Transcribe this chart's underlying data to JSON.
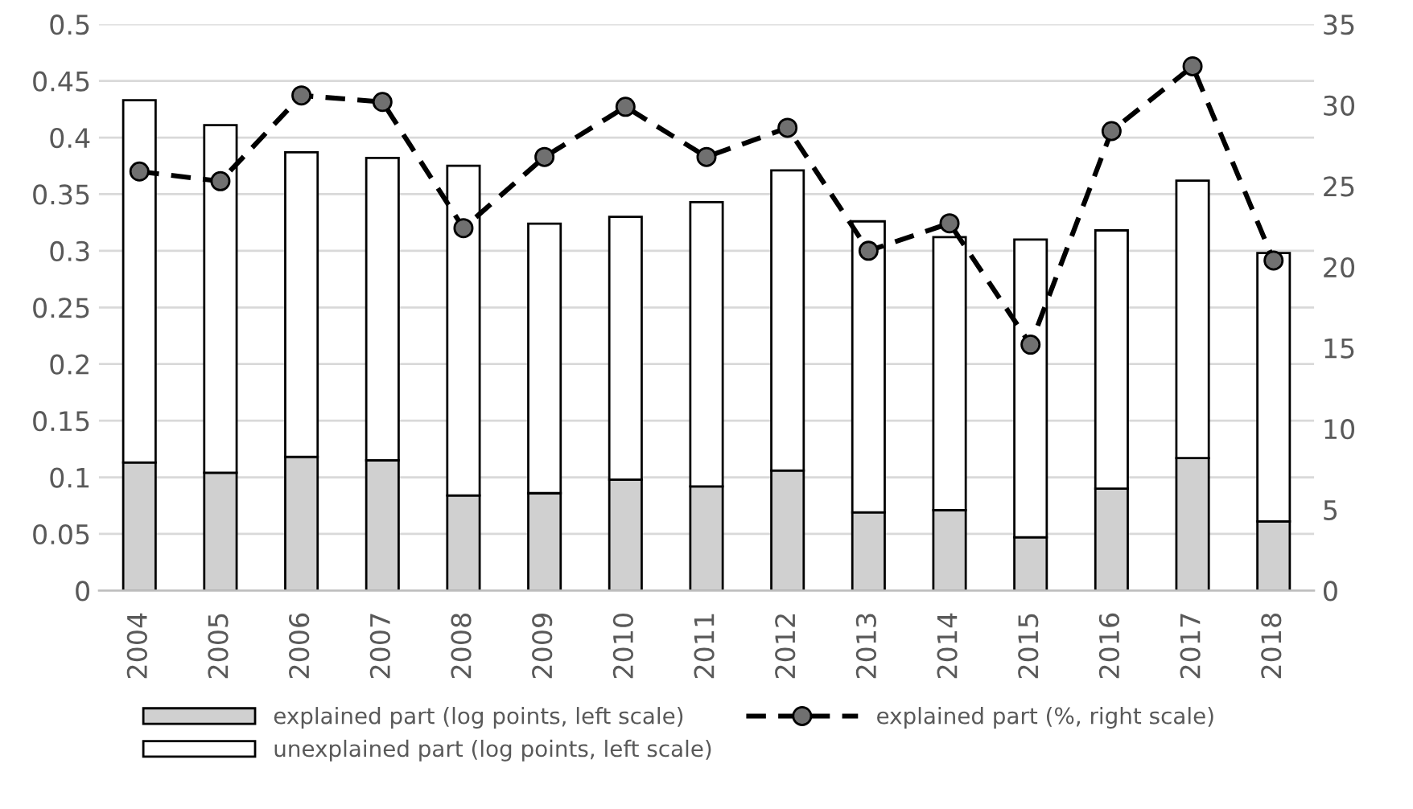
{
  "chart_data": {
    "type": "bar",
    "stacked": true,
    "categories": [
      "2004",
      "2005",
      "2006",
      "2007",
      "2008",
      "2009",
      "2010",
      "2011",
      "2012",
      "2013",
      "2014",
      "2015",
      "2016",
      "2017",
      "2018"
    ],
    "series": [
      {
        "name": "explained part (log points, left scale)",
        "color": "#d0d0d0",
        "values": [
          0.113,
          0.104,
          0.118,
          0.115,
          0.084,
          0.086,
          0.098,
          0.092,
          0.106,
          0.069,
          0.071,
          0.047,
          0.09,
          0.117,
          0.061
        ]
      },
      {
        "name": "unexplained part (log points, left scale)",
        "color": "#ffffff",
        "values": [
          0.32,
          0.307,
          0.269,
          0.267,
          0.291,
          0.238,
          0.232,
          0.251,
          0.265,
          0.257,
          0.241,
          0.263,
          0.228,
          0.245,
          0.237
        ]
      },
      {
        "name": "explained part (%, right scale)",
        "type": "line",
        "axis": "y2",
        "color": "#000000",
        "marker": "circle",
        "line_style": "dashed",
        "values": [
          25.9,
          25.3,
          30.6,
          30.2,
          22.4,
          26.8,
          29.9,
          26.8,
          28.6,
          21.0,
          22.7,
          15.2,
          28.4,
          32.4,
          20.4
        ]
      }
    ],
    "ylim": [
      0,
      0.5
    ],
    "yticks": [
      0,
      0.05,
      0.1,
      0.15,
      0.2,
      0.25,
      0.3,
      0.35,
      0.4,
      0.45,
      0.5
    ],
    "y2lim": [
      0,
      35
    ],
    "y2ticks": [
      0,
      5,
      10,
      15,
      20,
      25,
      30,
      35
    ],
    "grid": "y",
    "legend": "bottom"
  }
}
